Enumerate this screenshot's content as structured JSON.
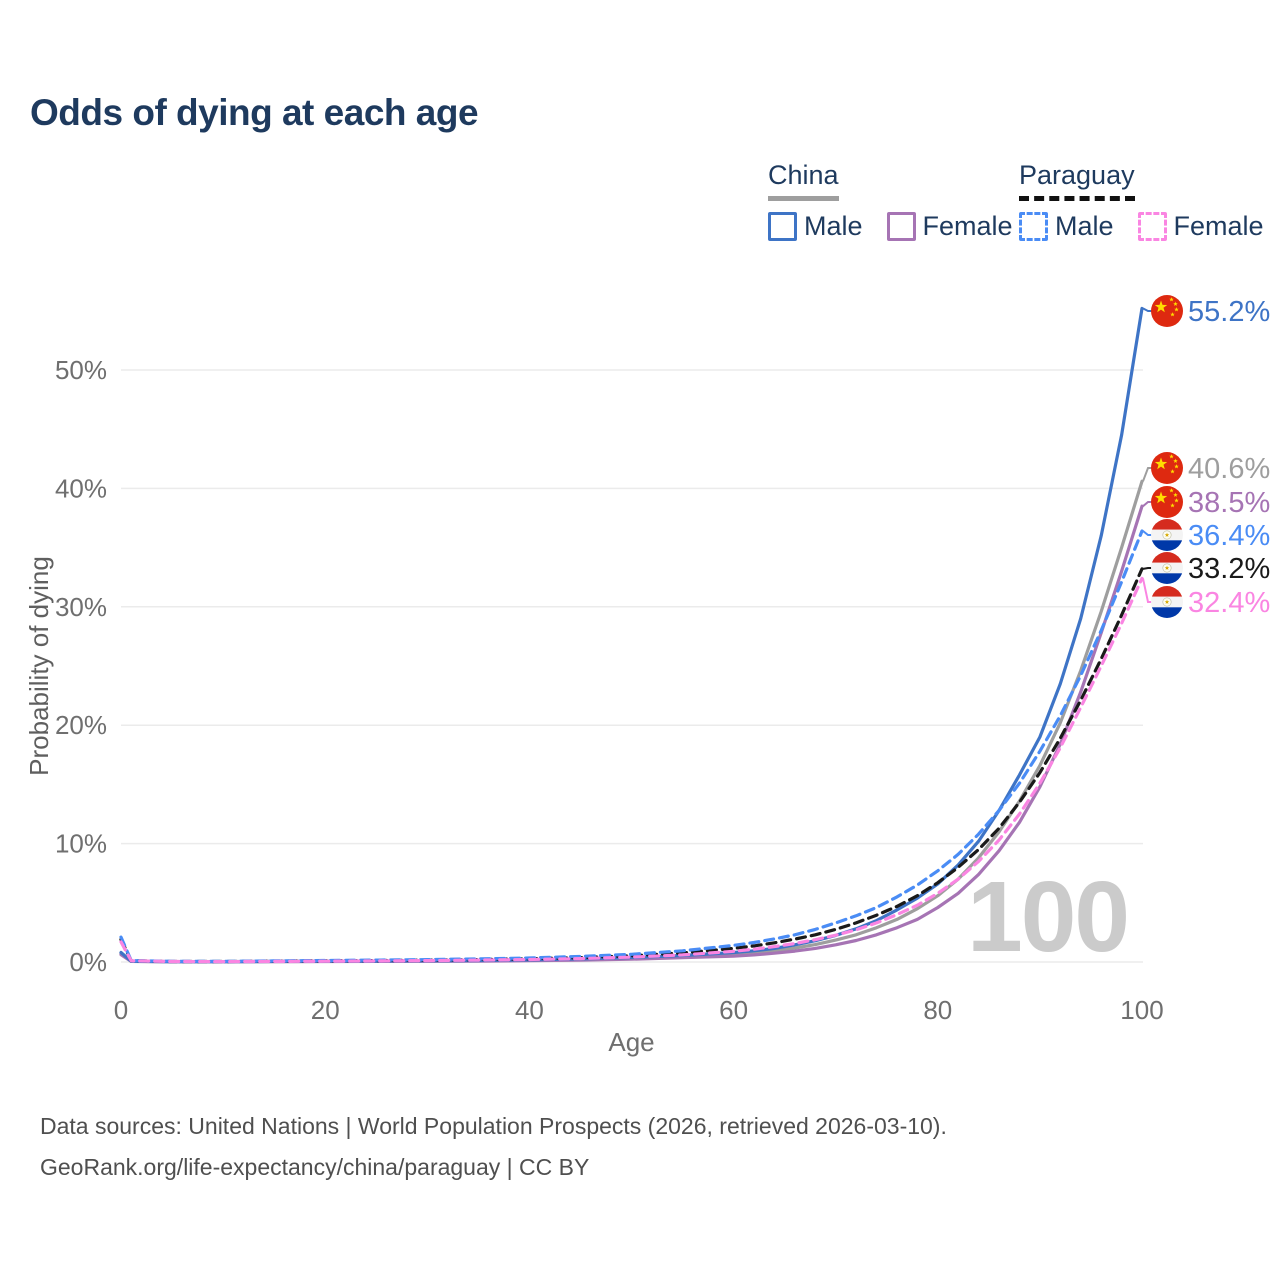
{
  "title": "Odds of dying at each age",
  "legend": {
    "groups": [
      {
        "country": "China",
        "line_style": "solid",
        "line_color": "#9e9e9e",
        "items": [
          {
            "label": "Male",
            "color": "#3e74c6",
            "dashed": false
          },
          {
            "label": "Female",
            "color": "#a674b4",
            "dashed": false
          }
        ]
      },
      {
        "country": "Paraguay",
        "line_style": "dashed",
        "line_color": "#111111",
        "items": [
          {
            "label": "Male",
            "color": "#4a8cf5",
            "dashed": true
          },
          {
            "label": "Female",
            "color": "#fa85e2",
            "dashed": true
          }
        ]
      }
    ]
  },
  "watermark": "100",
  "footer": {
    "line1": "Data sources: United Nations | World Population Prospects (2026, retrieved 2026-03-10).",
    "line2": "GeoRank.org/life-expectancy/china/paraguay | CC BY"
  },
  "chart_data": {
    "type": "line",
    "title": "Odds of dying at each age",
    "xlabel": "Age",
    "ylabel": "Probability of dying",
    "x_ticks": [
      0,
      20,
      40,
      60,
      80,
      100
    ],
    "y_ticks_pct": [
      0,
      10,
      20,
      30,
      40,
      50
    ],
    "y_tick_labels": [
      "0%",
      "10%",
      "20%",
      "30%",
      "40%",
      "50%"
    ],
    "xlim": [
      0,
      100
    ],
    "ylim_pct": [
      0,
      57
    ],
    "grid": "horizontal",
    "legend_position": "top-right",
    "ages": [
      0,
      1,
      5,
      10,
      15,
      20,
      25,
      30,
      35,
      40,
      45,
      50,
      55,
      60,
      62,
      64,
      66,
      68,
      70,
      72,
      74,
      76,
      78,
      80,
      82,
      84,
      86,
      88,
      90,
      92,
      94,
      96,
      98,
      100
    ],
    "series": [
      {
        "name": "China male",
        "flag": "china",
        "color": "#3e74c6",
        "dash": null,
        "end_label": "55.2%",
        "end_value": 55.2,
        "values": [
          0.8,
          0.06,
          0.03,
          0.03,
          0.05,
          0.07,
          0.08,
          0.1,
          0.13,
          0.18,
          0.26,
          0.38,
          0.55,
          0.8,
          0.95,
          1.15,
          1.45,
          1.8,
          2.25,
          2.8,
          3.5,
          4.4,
          5.4,
          6.6,
          8.2,
          10.2,
          12.8,
          15.8,
          19.0,
          23.5,
          29.0,
          36.0,
          44.5,
          55.2
        ]
      },
      {
        "name": "China",
        "flag": "china",
        "color": "#9e9e9e",
        "dash": null,
        "end_label": "40.6%",
        "end_value": 40.6,
        "values": [
          0.72,
          0.05,
          0.03,
          0.02,
          0.04,
          0.05,
          0.06,
          0.08,
          0.1,
          0.14,
          0.2,
          0.3,
          0.45,
          0.65,
          0.78,
          0.95,
          1.18,
          1.47,
          1.85,
          2.3,
          2.9,
          3.6,
          4.5,
          5.6,
          7.0,
          8.8,
          11.0,
          13.6,
          16.6,
          20.2,
          24.6,
          29.6,
          35.0,
          40.6
        ]
      },
      {
        "name": "China female",
        "flag": "china",
        "color": "#a674b4",
        "dash": null,
        "end_label": "38.5%",
        "end_value": 38.5,
        "values": [
          0.62,
          0.05,
          0.02,
          0.02,
          0.03,
          0.04,
          0.05,
          0.06,
          0.08,
          0.11,
          0.16,
          0.24,
          0.36,
          0.5,
          0.6,
          0.74,
          0.92,
          1.15,
          1.45,
          1.82,
          2.3,
          2.9,
          3.6,
          4.6,
          5.8,
          7.4,
          9.4,
          11.8,
          14.8,
          18.4,
          22.8,
          27.8,
          33.0,
          38.5
        ]
      },
      {
        "name": "Paraguay male",
        "flag": "paraguay",
        "color": "#4a8cf5",
        "dash": "9 6",
        "end_label": "36.4%",
        "end_value": 36.4,
        "values": [
          2.1,
          0.12,
          0.05,
          0.05,
          0.09,
          0.13,
          0.16,
          0.2,
          0.26,
          0.34,
          0.47,
          0.65,
          0.95,
          1.4,
          1.65,
          1.95,
          2.3,
          2.75,
          3.3,
          3.9,
          4.6,
          5.5,
          6.5,
          7.7,
          9.1,
          10.8,
          12.8,
          15.1,
          17.8,
          20.8,
          24.2,
          28.0,
          32.1,
          36.4
        ]
      },
      {
        "name": "Paraguay",
        "flag": "paraguay",
        "color": "#1a1a1a",
        "dash": "9 6",
        "end_label": "33.2%",
        "end_value": 33.2,
        "values": [
          1.9,
          0.11,
          0.04,
          0.04,
          0.07,
          0.1,
          0.12,
          0.15,
          0.2,
          0.27,
          0.37,
          0.52,
          0.77,
          1.15,
          1.36,
          1.62,
          1.93,
          2.3,
          2.75,
          3.3,
          3.95,
          4.7,
          5.6,
          6.7,
          8.0,
          9.5,
          11.3,
          13.5,
          16.0,
          18.9,
          22.1,
          25.6,
          29.3,
          33.2
        ]
      },
      {
        "name": "Paraguay female",
        "flag": "paraguay",
        "color": "#fa85e2",
        "dash": "9 6",
        "end_label": "32.4%",
        "end_value": 32.4,
        "values": [
          1.7,
          0.1,
          0.04,
          0.03,
          0.05,
          0.07,
          0.09,
          0.12,
          0.16,
          0.21,
          0.29,
          0.41,
          0.6,
          0.9,
          1.08,
          1.3,
          1.56,
          1.88,
          2.26,
          2.72,
          3.3,
          4.0,
          4.8,
          5.8,
          7.0,
          8.5,
          10.3,
          12.5,
          15.1,
          18.1,
          21.5,
          25.0,
          28.6,
          32.4
        ]
      }
    ]
  }
}
